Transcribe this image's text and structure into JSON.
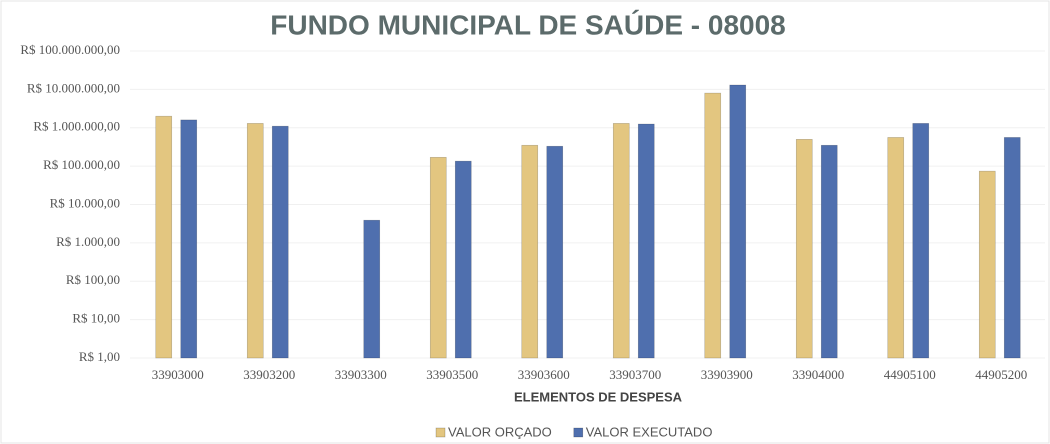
{
  "chart_data": {
    "type": "bar",
    "title": "FUNDO MUNICIPAL DE SAÚDE - 08008",
    "x_label": "ELEMENTOS DE DESPESA",
    "categories": [
      "33903000",
      "33903200",
      "33903300",
      "33903500",
      "33903600",
      "33903700",
      "33903900",
      "33904000",
      "44905100",
      "44905200"
    ],
    "series": [
      {
        "name": "VALOR ORÇADO",
        "color": "#e3c680",
        "values": [
          2000000,
          1300000,
          null,
          170000,
          350000,
          1300000,
          8000000,
          500000,
          560000,
          74000
        ]
      },
      {
        "name": "VALOR EXECUTADO",
        "color": "#4f6fae",
        "values": [
          1600000,
          1100000,
          3900,
          135000,
          330000,
          1250000,
          13000000,
          350000,
          1300000,
          560000
        ]
      }
    ],
    "log_scale": true,
    "ylim": [
      1,
      100000000
    ],
    "yticks": [
      {
        "value": 1,
        "label": "R$ 1,00"
      },
      {
        "value": 10,
        "label": "R$ 10,00"
      },
      {
        "value": 100,
        "label": "R$ 100,00"
      },
      {
        "value": 1000,
        "label": "R$ 1.000,00"
      },
      {
        "value": 10000,
        "label": "R$ 10.000,00"
      },
      {
        "value": 100000,
        "label": "R$ 100.000,00"
      },
      {
        "value": 1000000,
        "label": "R$ 1.000.000,00"
      },
      {
        "value": 10000000,
        "label": "R$ 10.000.000,00"
      },
      {
        "value": 100000000,
        "label": "R$ 100.000.000,00"
      }
    ],
    "grid": true,
    "legend": "bottom"
  }
}
